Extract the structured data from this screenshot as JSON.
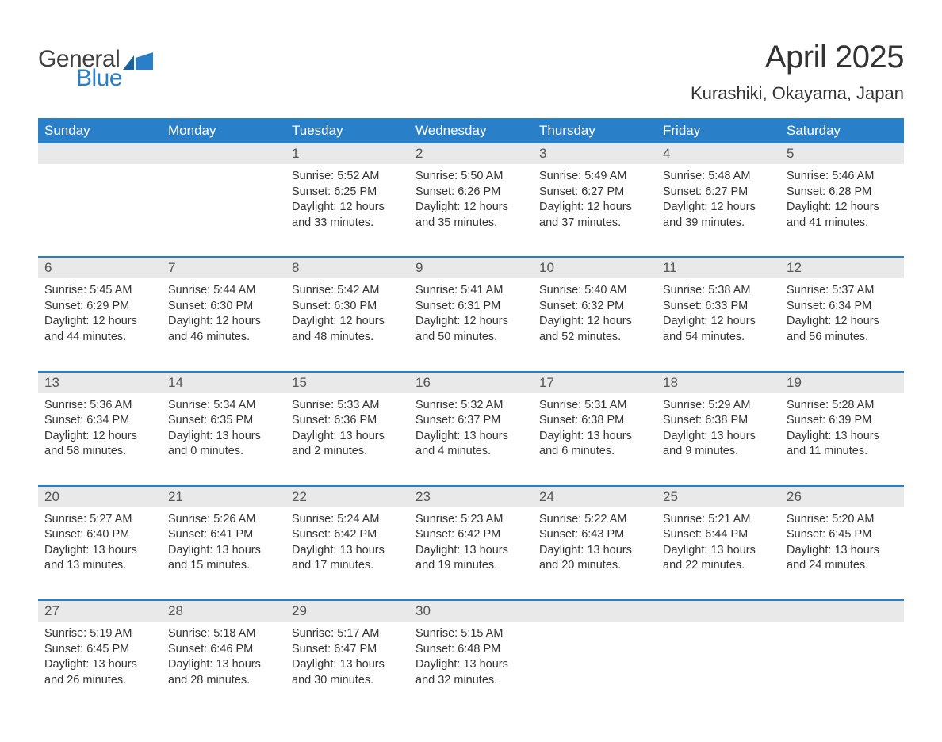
{
  "logo": {
    "general": "General",
    "blue": "Blue",
    "logo_color_dark": "#404040",
    "logo_color_blue": "#2a7fc9"
  },
  "title": {
    "month": "April 2025",
    "location": "Kurashiki, Okayama, Japan"
  },
  "colors": {
    "header_bg": "#2a7fc9",
    "header_text": "#ffffff",
    "daynum_bg": "#e9e9e9",
    "daynum_text": "#555555",
    "body_text": "#333333",
    "separator": "#2a7fc9",
    "page_bg": "#ffffff"
  },
  "weekdays": [
    "Sunday",
    "Monday",
    "Tuesday",
    "Wednesday",
    "Thursday",
    "Friday",
    "Saturday"
  ],
  "weeks": [
    {
      "nums": [
        "",
        "",
        "1",
        "2",
        "3",
        "4",
        "5"
      ],
      "cells": [
        {
          "sunrise": "",
          "sunset": "",
          "daylight": ""
        },
        {
          "sunrise": "",
          "sunset": "",
          "daylight": ""
        },
        {
          "sunrise": "Sunrise: 5:52 AM",
          "sunset": "Sunset: 6:25 PM",
          "daylight": "Daylight: 12 hours and 33 minutes."
        },
        {
          "sunrise": "Sunrise: 5:50 AM",
          "sunset": "Sunset: 6:26 PM",
          "daylight": "Daylight: 12 hours and 35 minutes."
        },
        {
          "sunrise": "Sunrise: 5:49 AM",
          "sunset": "Sunset: 6:27 PM",
          "daylight": "Daylight: 12 hours and 37 minutes."
        },
        {
          "sunrise": "Sunrise: 5:48 AM",
          "sunset": "Sunset: 6:27 PM",
          "daylight": "Daylight: 12 hours and 39 minutes."
        },
        {
          "sunrise": "Sunrise: 5:46 AM",
          "sunset": "Sunset: 6:28 PM",
          "daylight": "Daylight: 12 hours and 41 minutes."
        }
      ]
    },
    {
      "nums": [
        "6",
        "7",
        "8",
        "9",
        "10",
        "11",
        "12"
      ],
      "cells": [
        {
          "sunrise": "Sunrise: 5:45 AM",
          "sunset": "Sunset: 6:29 PM",
          "daylight": "Daylight: 12 hours and 44 minutes."
        },
        {
          "sunrise": "Sunrise: 5:44 AM",
          "sunset": "Sunset: 6:30 PM",
          "daylight": "Daylight: 12 hours and 46 minutes."
        },
        {
          "sunrise": "Sunrise: 5:42 AM",
          "sunset": "Sunset: 6:30 PM",
          "daylight": "Daylight: 12 hours and 48 minutes."
        },
        {
          "sunrise": "Sunrise: 5:41 AM",
          "sunset": "Sunset: 6:31 PM",
          "daylight": "Daylight: 12 hours and 50 minutes."
        },
        {
          "sunrise": "Sunrise: 5:40 AM",
          "sunset": "Sunset: 6:32 PM",
          "daylight": "Daylight: 12 hours and 52 minutes."
        },
        {
          "sunrise": "Sunrise: 5:38 AM",
          "sunset": "Sunset: 6:33 PM",
          "daylight": "Daylight: 12 hours and 54 minutes."
        },
        {
          "sunrise": "Sunrise: 5:37 AM",
          "sunset": "Sunset: 6:34 PM",
          "daylight": "Daylight: 12 hours and 56 minutes."
        }
      ]
    },
    {
      "nums": [
        "13",
        "14",
        "15",
        "16",
        "17",
        "18",
        "19"
      ],
      "cells": [
        {
          "sunrise": "Sunrise: 5:36 AM",
          "sunset": "Sunset: 6:34 PM",
          "daylight": "Daylight: 12 hours and 58 minutes."
        },
        {
          "sunrise": "Sunrise: 5:34 AM",
          "sunset": "Sunset: 6:35 PM",
          "daylight": "Daylight: 13 hours and 0 minutes."
        },
        {
          "sunrise": "Sunrise: 5:33 AM",
          "sunset": "Sunset: 6:36 PM",
          "daylight": "Daylight: 13 hours and 2 minutes."
        },
        {
          "sunrise": "Sunrise: 5:32 AM",
          "sunset": "Sunset: 6:37 PM",
          "daylight": "Daylight: 13 hours and 4 minutes."
        },
        {
          "sunrise": "Sunrise: 5:31 AM",
          "sunset": "Sunset: 6:38 PM",
          "daylight": "Daylight: 13 hours and 6 minutes."
        },
        {
          "sunrise": "Sunrise: 5:29 AM",
          "sunset": "Sunset: 6:38 PM",
          "daylight": "Daylight: 13 hours and 9 minutes."
        },
        {
          "sunrise": "Sunrise: 5:28 AM",
          "sunset": "Sunset: 6:39 PM",
          "daylight": "Daylight: 13 hours and 11 minutes."
        }
      ]
    },
    {
      "nums": [
        "20",
        "21",
        "22",
        "23",
        "24",
        "25",
        "26"
      ],
      "cells": [
        {
          "sunrise": "Sunrise: 5:27 AM",
          "sunset": "Sunset: 6:40 PM",
          "daylight": "Daylight: 13 hours and 13 minutes."
        },
        {
          "sunrise": "Sunrise: 5:26 AM",
          "sunset": "Sunset: 6:41 PM",
          "daylight": "Daylight: 13 hours and 15 minutes."
        },
        {
          "sunrise": "Sunrise: 5:24 AM",
          "sunset": "Sunset: 6:42 PM",
          "daylight": "Daylight: 13 hours and 17 minutes."
        },
        {
          "sunrise": "Sunrise: 5:23 AM",
          "sunset": "Sunset: 6:42 PM",
          "daylight": "Daylight: 13 hours and 19 minutes."
        },
        {
          "sunrise": "Sunrise: 5:22 AM",
          "sunset": "Sunset: 6:43 PM",
          "daylight": "Daylight: 13 hours and 20 minutes."
        },
        {
          "sunrise": "Sunrise: 5:21 AM",
          "sunset": "Sunset: 6:44 PM",
          "daylight": "Daylight: 13 hours and 22 minutes."
        },
        {
          "sunrise": "Sunrise: 5:20 AM",
          "sunset": "Sunset: 6:45 PM",
          "daylight": "Daylight: 13 hours and 24 minutes."
        }
      ]
    },
    {
      "nums": [
        "27",
        "28",
        "29",
        "30",
        "",
        "",
        ""
      ],
      "cells": [
        {
          "sunrise": "Sunrise: 5:19 AM",
          "sunset": "Sunset: 6:45 PM",
          "daylight": "Daylight: 13 hours and 26 minutes."
        },
        {
          "sunrise": "Sunrise: 5:18 AM",
          "sunset": "Sunset: 6:46 PM",
          "daylight": "Daylight: 13 hours and 28 minutes."
        },
        {
          "sunrise": "Sunrise: 5:17 AM",
          "sunset": "Sunset: 6:47 PM",
          "daylight": "Daylight: 13 hours and 30 minutes."
        },
        {
          "sunrise": "Sunrise: 5:15 AM",
          "sunset": "Sunset: 6:48 PM",
          "daylight": "Daylight: 13 hours and 32 minutes."
        },
        {
          "sunrise": "",
          "sunset": "",
          "daylight": ""
        },
        {
          "sunrise": "",
          "sunset": "",
          "daylight": ""
        },
        {
          "sunrise": "",
          "sunset": "",
          "daylight": ""
        }
      ]
    }
  ]
}
